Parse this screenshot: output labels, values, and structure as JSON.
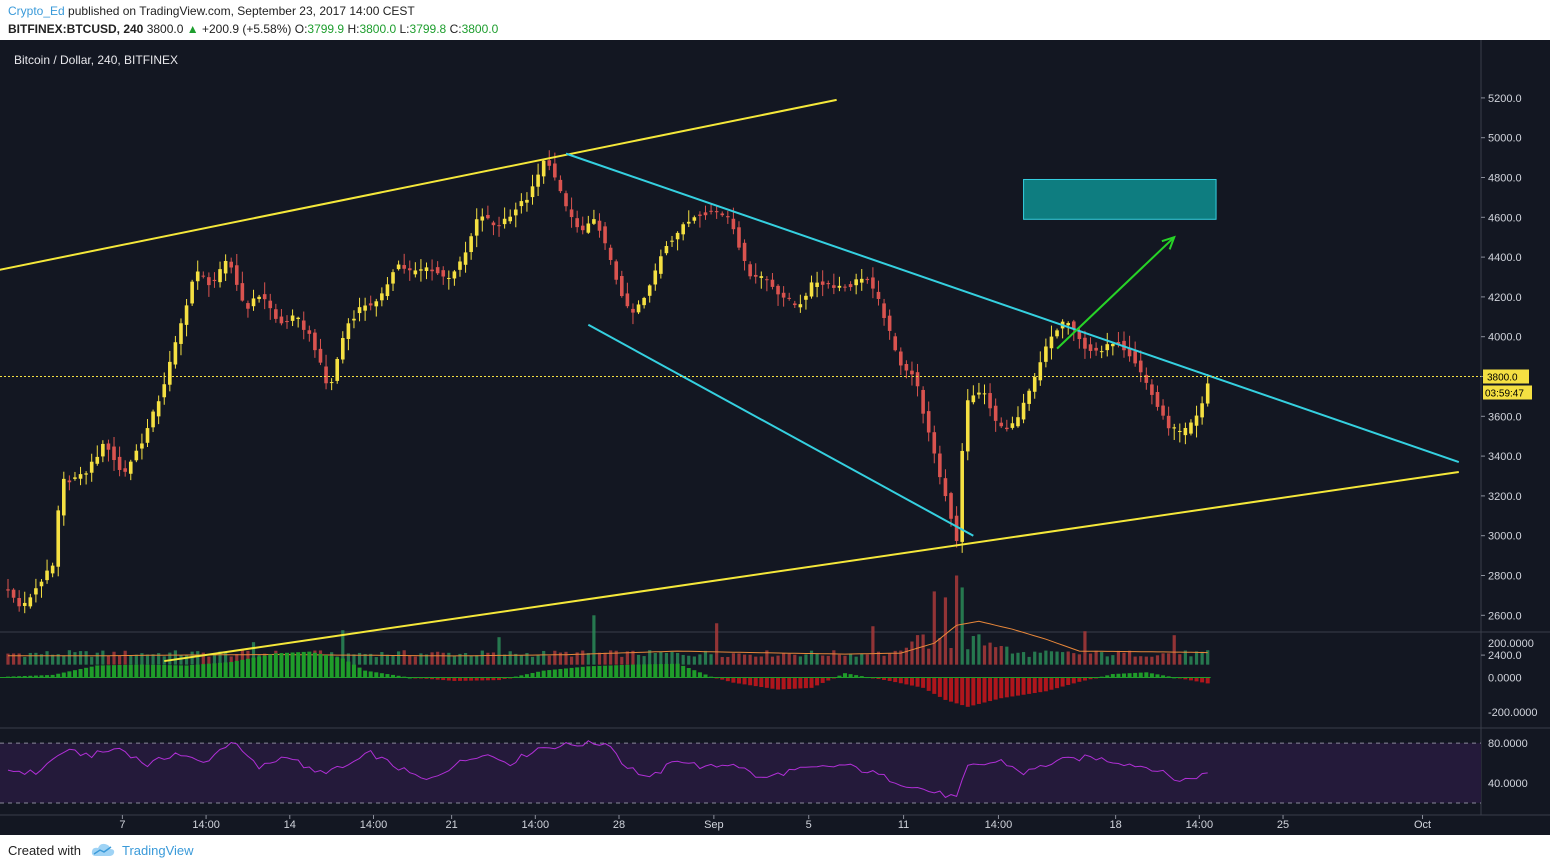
{
  "header": {
    "author": "Crypto_Ed",
    "published_text": "published on TradingView.com, September 23, 2017 14:00 CEST",
    "symbol": "BITFINEX:BTCUSD, 240",
    "last_price": "3800.0",
    "change_arrow": "▲",
    "change": "+200.9 (+5.58%)",
    "open_label": "O:",
    "open_value": "3799.9",
    "high_label": "H:",
    "high_value": "3800.0",
    "low_label": "L:",
    "low_value": "3799.8",
    "close_label": "C:",
    "close_value": "3800.0"
  },
  "footer": {
    "created_with": "Created with",
    "brand": "TradingView"
  },
  "colors": {
    "background": "#131722",
    "up": "#f5e042",
    "down": "#d9534f",
    "trendline": "#f5e83a",
    "channel": "#35d0e0",
    "target_zone": "#0e7d80",
    "arrow": "#27d327",
    "rsi": "#b02fd6",
    "rsi_band": "#241a3a",
    "hist_up": "#1f9d2a",
    "hist_down": "#b0161c",
    "volume_ma": "#e8873a"
  },
  "chart_data": {
    "type": "candlestick",
    "title": "Bitcoin / Dollar, 240, BITFINEX",
    "price_axis": {
      "ticks": [
        2400,
        2600,
        2800,
        3000,
        3200,
        3400,
        3600,
        3800,
        4000,
        4200,
        4400,
        4600,
        4800,
        5000,
        5200
      ],
      "tick_labels": [
        "2400.0",
        "2600.0",
        "2800.0",
        "3000.0",
        "3200.0",
        "3400.0",
        "3600.0",
        "3800.0",
        "4000.0",
        "4200.0",
        "4400.0",
        "4600.0",
        "4800.0",
        "5000.0",
        "5200.0"
      ],
      "current_price_label": "3800.0",
      "countdown_label": "03:59:47",
      "current_price": 3800
    },
    "time_axis": {
      "labels": [
        "7",
        "14:00",
        "14",
        "14:00",
        "21",
        "14:00",
        "28",
        "Sep",
        "5",
        "11",
        "14:00",
        "18",
        "14:00",
        "25",
        "Oct"
      ]
    },
    "price_path": [
      [
        0,
        2740
      ],
      [
        3,
        2630
      ],
      [
        6,
        2760
      ],
      [
        9,
        2860
      ],
      [
        9.8,
        3270
      ],
      [
        14,
        3300
      ],
      [
        18,
        3470
      ],
      [
        21,
        3300
      ],
      [
        25,
        3500
      ],
      [
        28,
        3720
      ],
      [
        31,
        4010
      ],
      [
        34,
        4330
      ],
      [
        37,
        4260
      ],
      [
        40,
        4390
      ],
      [
        43,
        4140
      ],
      [
        46,
        4220
      ],
      [
        49,
        4060
      ],
      [
        52,
        4100
      ],
      [
        55,
        3990
      ],
      [
        58,
        3720
      ],
      [
        61,
        4050
      ],
      [
        64,
        4160
      ],
      [
        67,
        4170
      ],
      [
        70,
        4370
      ],
      [
        73,
        4320
      ],
      [
        76,
        4350
      ],
      [
        79,
        4290
      ],
      [
        82,
        4380
      ],
      [
        85,
        4620
      ],
      [
        88,
        4550
      ],
      [
        91,
        4630
      ],
      [
        94,
        4710
      ],
      [
        97,
        4910
      ],
      [
        100,
        4680
      ],
      [
        103,
        4520
      ],
      [
        106,
        4590
      ],
      [
        109,
        4330
      ],
      [
        112,
        4100
      ],
      [
        115,
        4210
      ],
      [
        118,
        4450
      ],
      [
        121,
        4540
      ],
      [
        124,
        4620
      ],
      [
        127,
        4630
      ],
      [
        130,
        4600
      ],
      [
        133,
        4320
      ],
      [
        136,
        4300
      ],
      [
        139,
        4210
      ],
      [
        142,
        4150
      ],
      [
        145,
        4280
      ],
      [
        148,
        4260
      ],
      [
        151,
        4250
      ],
      [
        154,
        4310
      ],
      [
        157,
        4150
      ],
      [
        160,
        3880
      ],
      [
        163,
        3800
      ],
      [
        166,
        3450
      ],
      [
        169,
        3150
      ],
      [
        170.5,
        2980
      ],
      [
        172,
        3660
      ],
      [
        175,
        3740
      ],
      [
        178,
        3540
      ],
      [
        181,
        3560
      ],
      [
        184,
        3750
      ],
      [
        187,
        3980
      ],
      [
        190,
        4090
      ],
      [
        193,
        3960
      ],
      [
        196,
        3910
      ],
      [
        199,
        3990
      ],
      [
        202,
        3900
      ],
      [
        205,
        3740
      ],
      [
        208,
        3560
      ],
      [
        211,
        3510
      ],
      [
        214,
        3610
      ],
      [
        215.8,
        3800
      ]
    ],
    "volume_ma": [
      [
        0,
        2397
      ],
      [
        18,
        2397
      ],
      [
        30,
        2400
      ],
      [
        48,
        2403
      ],
      [
        60,
        2400
      ],
      [
        80,
        2396
      ],
      [
        100,
        2402
      ],
      [
        120,
        2420
      ],
      [
        135,
        2412
      ],
      [
        150,
        2405
      ],
      [
        160,
        2410
      ],
      [
        166,
        2460
      ],
      [
        170,
        2550
      ],
      [
        174,
        2570
      ],
      [
        180,
        2530
      ],
      [
        186,
        2480
      ],
      [
        192,
        2420
      ],
      [
        200,
        2418
      ],
      [
        210,
        2415
      ],
      [
        216,
        2412
      ]
    ],
    "volume_spikes": [
      [
        170,
        2800
      ],
      [
        171,
        2740
      ],
      [
        166,
        2720
      ],
      [
        168,
        2690
      ],
      [
        105,
        2600
      ],
      [
        155,
        2545
      ],
      [
        88,
        2490
      ],
      [
        193,
        2520
      ],
      [
        209,
        2500
      ],
      [
        127,
        2560
      ],
      [
        60,
        2525
      ],
      [
        44,
        2465
      ]
    ],
    "momentum_axis": {
      "ticks": [
        200,
        0,
        -200
      ],
      "tick_labels": [
        "200.0000",
        "0.0000",
        "-200.0000"
      ]
    },
    "momentum": [
      [
        0,
        5
      ],
      [
        8,
        15
      ],
      [
        16,
        70
      ],
      [
        24,
        75
      ],
      [
        32,
        70
      ],
      [
        40,
        90
      ],
      [
        48,
        140
      ],
      [
        54,
        150
      ],
      [
        60,
        110
      ],
      [
        64,
        40
      ],
      [
        72,
        0
      ],
      [
        80,
        -20
      ],
      [
        88,
        -15
      ],
      [
        96,
        40
      ],
      [
        104,
        65
      ],
      [
        112,
        75
      ],
      [
        120,
        80
      ],
      [
        126,
        5
      ],
      [
        130,
        -30
      ],
      [
        138,
        -70
      ],
      [
        144,
        -60
      ],
      [
        150,
        25
      ],
      [
        158,
        -20
      ],
      [
        164,
        -60
      ],
      [
        168,
        -130
      ],
      [
        172,
        -170
      ],
      [
        178,
        -120
      ],
      [
        186,
        -80
      ],
      [
        192,
        -25
      ],
      [
        198,
        20
      ],
      [
        204,
        30
      ],
      [
        210,
        -5
      ],
      [
        216,
        -40
      ]
    ],
    "rsi_axis": {
      "ticks": [
        80,
        40
      ],
      "tick_labels": [
        "80.0000",
        "40.0000"
      ]
    },
    "rsi": [
      [
        0,
        53
      ],
      [
        5,
        50
      ],
      [
        10,
        72
      ],
      [
        15,
        68
      ],
      [
        20,
        75
      ],
      [
        25,
        58
      ],
      [
        30,
        70
      ],
      [
        35,
        60
      ],
      [
        40,
        82
      ],
      [
        45,
        55
      ],
      [
        50,
        68
      ],
      [
        55,
        50
      ],
      [
        60,
        55
      ],
      [
        65,
        70
      ],
      [
        70,
        55
      ],
      [
        75,
        42
      ],
      [
        80,
        58
      ],
      [
        85,
        70
      ],
      [
        90,
        60
      ],
      [
        95,
        75
      ],
      [
        100,
        78
      ],
      [
        105,
        80
      ],
      [
        108,
        79
      ],
      [
        110,
        60
      ],
      [
        115,
        44
      ],
      [
        120,
        64
      ],
      [
        125,
        55
      ],
      [
        130,
        60
      ],
      [
        135,
        44
      ],
      [
        140,
        52
      ],
      [
        145,
        55
      ],
      [
        150,
        58
      ],
      [
        155,
        50
      ],
      [
        160,
        40
      ],
      [
        165,
        32
      ],
      [
        170,
        25
      ],
      [
        172,
        56
      ],
      [
        178,
        62
      ],
      [
        182,
        50
      ],
      [
        188,
        62
      ],
      [
        194,
        66
      ],
      [
        200,
        60
      ],
      [
        205,
        55
      ],
      [
        210,
        42
      ],
      [
        216,
        51
      ]
    ],
    "annotations": [
      {
        "type": "trendline",
        "color": "yellow",
        "from": [
          -122,
          3650
        ],
        "to": [
          148.5,
          5190
        ]
      },
      {
        "type": "trendline",
        "color": "yellow",
        "from": [
          28,
          2370
        ],
        "to": [
          260,
          3320
        ]
      },
      {
        "type": "trendline",
        "color": "cyan",
        "from": [
          100,
          4920
        ],
        "to": [
          260,
          3370
        ]
      },
      {
        "type": "trendline",
        "color": "cyan",
        "from": [
          104,
          4060
        ],
        "to": [
          173,
          3000
        ]
      },
      {
        "type": "rectangle",
        "color": "teal",
        "from": [
          182,
          4590
        ],
        "to": [
          216.5,
          4790
        ]
      },
      {
        "type": "arrow",
        "color": "green",
        "from": [
          188,
          3940
        ],
        "to": [
          209,
          4500
        ]
      }
    ]
  }
}
